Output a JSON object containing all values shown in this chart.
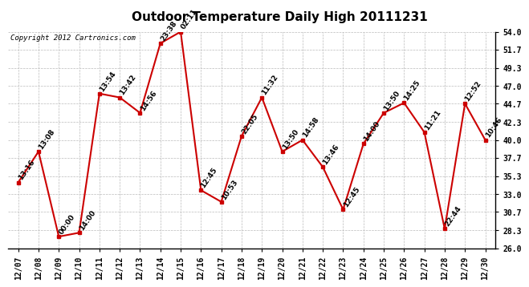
{
  "title": "Outdoor Temperature Daily High 20111231",
  "copyright": "Copyright 2012 Cartronics.com",
  "x_labels": [
    "12/07",
    "12/08",
    "12/09",
    "12/10",
    "12/11",
    "12/12",
    "12/13",
    "12/14",
    "12/15",
    "12/16",
    "12/17",
    "12/18",
    "12/19",
    "12/20",
    "12/21",
    "12/22",
    "12/23",
    "12/24",
    "12/25",
    "12/26",
    "12/27",
    "12/28",
    "12/29",
    "12/30"
  ],
  "y_values": [
    34.5,
    38.5,
    27.5,
    28.0,
    46.0,
    45.5,
    43.5,
    52.5,
    54.0,
    33.5,
    32.0,
    40.5,
    45.5,
    38.5,
    40.0,
    36.5,
    31.0,
    39.5,
    43.5,
    44.8,
    41.0,
    28.5,
    44.7,
    40.0
  ],
  "point_labels": [
    "13:16",
    "13:08",
    "00:00",
    "14:00",
    "13:54",
    "13:42",
    "14:56",
    "23:38",
    "02:11",
    "12:45",
    "10:53",
    "22:05",
    "11:32",
    "13:50",
    "14:58",
    "13:46",
    "12:45",
    "14:00",
    "13:50",
    "14:25",
    "11:21",
    "22:44",
    "12:52",
    "10:46"
  ],
  "line_color": "#cc0000",
  "marker_color": "#cc0000",
  "background_color": "#ffffff",
  "grid_color": "#bbbbbb",
  "ylim": [
    26.0,
    54.0
  ],
  "yticks": [
    26.0,
    28.3,
    30.7,
    33.0,
    35.3,
    37.7,
    40.0,
    42.3,
    44.7,
    47.0,
    49.3,
    51.7,
    54.0
  ],
  "title_fontsize": 11,
  "label_fontsize": 6.5,
  "copyright_fontsize": 6.5,
  "tick_fontsize": 7
}
